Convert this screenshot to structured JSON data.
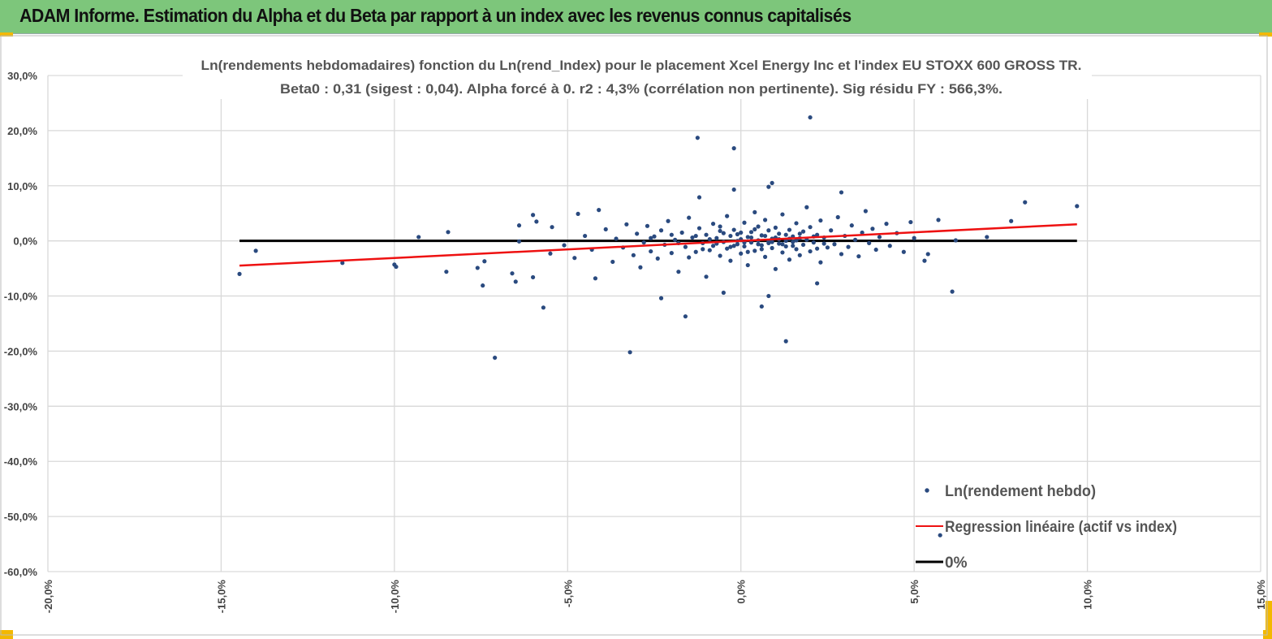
{
  "header": {
    "title": "ADAM Informe. Estimation du Alpha et du Beta par rapport à un index avec les revenus connus capitalisés"
  },
  "chart_data": {
    "type": "scatter",
    "title": "Ln(rendements hebdomadaires) fonction du Ln(rend_Index) pour le placement Xcel Energy Inc et l'index EU STOXX 600 GROSS TR.",
    "subtitle": "Beta0 : 0,31 (sigest : 0,04).  Alpha forcé à 0. r2 : 4,3% (corrélation non pertinente). Sig résidu FY : 566,3%.",
    "xlim": [
      -20,
      15
    ],
    "ylim": [
      -60,
      30
    ],
    "x_ticks": [
      -20,
      -15,
      -10,
      -5,
      0,
      5,
      10,
      15
    ],
    "x_tick_labels": [
      "-20,0%",
      "-15,0%",
      "-10,0%",
      "-5,0%",
      "0,0%",
      "5,0%",
      "10,0%",
      "15,0%"
    ],
    "y_ticks": [
      30,
      20,
      10,
      0,
      -10,
      -20,
      -30,
      -40,
      -50,
      -60
    ],
    "y_tick_labels": [
      "30,0%",
      "20,0%",
      "10,0%",
      "0,0%",
      "-10,0%",
      "-20,0%",
      "-30,0%",
      "-40,0%",
      "-50,0%",
      "-60,0%"
    ],
    "grid": true,
    "legend_position": "bottom-right",
    "legend": [
      "Ln(rendement hebdo)",
      "Regression linéaire (actif vs index)",
      "0%"
    ],
    "colors": {
      "points": "#2a4a7f",
      "regression": "#ee1111",
      "zero": "#000000",
      "header": "#7dc67b"
    },
    "regression": {
      "beta": 0.31,
      "alpha": 0,
      "x_range": [
        -14.47,
        9.7
      ]
    },
    "zero_line": {
      "y": 0,
      "x_range": [
        -14.47,
        9.7
      ]
    },
    "points": [
      [
        -14.47,
        -6.0
      ],
      [
        -14.0,
        -1.8
      ],
      [
        -11.5,
        -4.0
      ],
      [
        -10.0,
        -4.3
      ],
      [
        -9.95,
        -4.7
      ],
      [
        -9.3,
        0.7
      ],
      [
        -8.45,
        1.6
      ],
      [
        -8.5,
        -5.6
      ],
      [
        -7.6,
        -4.9
      ],
      [
        -7.4,
        -3.7
      ],
      [
        -7.45,
        -8.1
      ],
      [
        -7.1,
        -21.2
      ],
      [
        -6.6,
        -5.9
      ],
      [
        -6.5,
        -7.4
      ],
      [
        -6.4,
        -0.1
      ],
      [
        -6.4,
        2.8
      ],
      [
        -6.0,
        4.7
      ],
      [
        -5.9,
        3.5
      ],
      [
        -5.7,
        -12.1
      ],
      [
        -6.0,
        -6.6
      ],
      [
        -5.45,
        2.5
      ],
      [
        -4.7,
        4.9
      ],
      [
        -4.1,
        5.6
      ],
      [
        -4.2,
        -6.8
      ],
      [
        -3.2,
        -20.2
      ],
      [
        -1.25,
        18.7
      ],
      [
        -1.2,
        7.9
      ],
      [
        -1.6,
        -13.7
      ],
      [
        -2.3,
        -10.4
      ],
      [
        -0.2,
        9.3
      ],
      [
        -0.2,
        16.8
      ],
      [
        0.9,
        10.5
      ],
      [
        0.8,
        9.8
      ],
      [
        2.0,
        22.4
      ],
      [
        1.3,
        -18.2
      ],
      [
        0.6,
        -11.9
      ],
      [
        0.8,
        -10.0
      ],
      [
        2.2,
        -7.7
      ],
      [
        2.9,
        8.8
      ],
      [
        6.1,
        -9.2
      ],
      [
        5.7,
        3.8
      ],
      [
        6.2,
        0.1
      ],
      [
        7.1,
        0.7
      ],
      [
        7.8,
        3.6
      ],
      [
        8.2,
        7.0
      ],
      [
        9.7,
        6.3
      ],
      [
        5.75,
        -53.4
      ],
      [
        5.3,
        -3.6
      ],
      [
        5.4,
        -2.4
      ],
      [
        -0.5,
        -9.4
      ],
      [
        -5.5,
        -2.3
      ],
      [
        -5.1,
        -0.8
      ],
      [
        -4.8,
        -3.1
      ],
      [
        -4.5,
        0.9
      ],
      [
        -4.3,
        -1.6
      ],
      [
        -3.9,
        2.1
      ],
      [
        -3.7,
        -3.8
      ],
      [
        -3.6,
        0.4
      ],
      [
        -3.4,
        -1.2
      ],
      [
        -3.3,
        3.0
      ],
      [
        -3.1,
        -2.6
      ],
      [
        -3.0,
        1.3
      ],
      [
        -2.9,
        -4.8
      ],
      [
        -2.8,
        -0.3
      ],
      [
        -2.7,
        2.7
      ],
      [
        -2.6,
        -1.9
      ],
      [
        -2.5,
        0.8
      ],
      [
        -2.4,
        -3.2
      ],
      [
        -2.3,
        1.9
      ],
      [
        -2.2,
        -0.7
      ],
      [
        -2.1,
        3.6
      ],
      [
        -2.0,
        -2.2
      ],
      [
        -1.9,
        0.2
      ],
      [
        -1.8,
        -5.6
      ],
      [
        -1.7,
        1.5
      ],
      [
        -1.6,
        -1.1
      ],
      [
        -1.5,
        4.2
      ],
      [
        -1.5,
        -3.0
      ],
      [
        -1.4,
        0.6
      ],
      [
        -1.3,
        -2.0
      ],
      [
        -1.2,
        2.3
      ],
      [
        -1.1,
        -0.4
      ],
      [
        -1.0,
        -6.5
      ],
      [
        -1.0,
        1.1
      ],
      [
        -0.9,
        -1.7
      ],
      [
        -0.8,
        3.1
      ],
      [
        -0.8,
        -0.9
      ],
      [
        -0.7,
        0.5
      ],
      [
        -0.6,
        -2.7
      ],
      [
        -0.6,
        1.8
      ],
      [
        -0.5,
        -0.2
      ],
      [
        -0.4,
        4.5
      ],
      [
        -0.4,
        -1.4
      ],
      [
        -0.3,
        0.9
      ],
      [
        -0.3,
        -3.6
      ],
      [
        -0.2,
        2.0
      ],
      [
        -0.1,
        -0.6
      ],
      [
        -0.1,
        1.2
      ],
      [
        0.0,
        -2.3
      ],
      [
        0.0,
        0.3
      ],
      [
        0.1,
        3.3
      ],
      [
        0.1,
        -1.0
      ],
      [
        0.2,
        0.7
      ],
      [
        0.2,
        -4.4
      ],
      [
        0.3,
        1.6
      ],
      [
        0.3,
        -0.3
      ],
      [
        0.4,
        5.2
      ],
      [
        0.4,
        -1.8
      ],
      [
        0.5,
        0.1
      ],
      [
        0.5,
        2.6
      ],
      [
        0.6,
        -0.8
      ],
      [
        0.6,
        1.0
      ],
      [
        0.7,
        -2.9
      ],
      [
        0.7,
        3.8
      ],
      [
        0.8,
        -0.1
      ],
      [
        0.8,
        1.9
      ],
      [
        0.9,
        -1.3
      ],
      [
        0.9,
        0.4
      ],
      [
        1.0,
        -5.1
      ],
      [
        1.0,
        2.4
      ],
      [
        1.1,
        -0.5
      ],
      [
        1.1,
        1.3
      ],
      [
        1.2,
        -2.1
      ],
      [
        1.2,
        4.8
      ],
      [
        1.3,
        0.0
      ],
      [
        1.3,
        -1.0
      ],
      [
        1.4,
        2.0
      ],
      [
        1.4,
        -3.4
      ],
      [
        1.5,
        0.8
      ],
      [
        1.5,
        -0.2
      ],
      [
        1.6,
        3.2
      ],
      [
        1.6,
        -1.5
      ],
      [
        1.7,
        0.5
      ],
      [
        1.7,
        -2.6
      ],
      [
        1.8,
        1.7
      ],
      [
        1.8,
        -0.7
      ],
      [
        1.9,
        6.1
      ],
      [
        1.9,
        0.2
      ],
      [
        2.0,
        -1.9
      ],
      [
        2.0,
        2.5
      ],
      [
        2.1,
        -0.3
      ],
      [
        2.2,
        1.1
      ],
      [
        2.3,
        -3.9
      ],
      [
        2.3,
        3.7
      ],
      [
        2.4,
        0.6
      ],
      [
        2.5,
        -1.2
      ],
      [
        2.6,
        1.9
      ],
      [
        2.7,
        -0.6
      ],
      [
        2.8,
        4.3
      ],
      [
        2.9,
        -2.4
      ],
      [
        3.0,
        0.9
      ],
      [
        3.1,
        -1.1
      ],
      [
        3.2,
        2.8
      ],
      [
        3.3,
        0.2
      ],
      [
        3.4,
        -2.8
      ],
      [
        3.5,
        1.5
      ],
      [
        3.6,
        5.4
      ],
      [
        3.7,
        -0.4
      ],
      [
        3.8,
        2.2
      ],
      [
        3.9,
        -1.6
      ],
      [
        4.0,
        0.7
      ],
      [
        4.2,
        3.1
      ],
      [
        4.3,
        -0.9
      ],
      [
        4.5,
        1.4
      ],
      [
        4.7,
        -2.0
      ],
      [
        4.9,
        3.4
      ],
      [
        5.0,
        0.5
      ],
      [
        -0.9,
        0.3
      ],
      [
        -0.7,
        -0.5
      ],
      [
        -0.5,
        1.4
      ],
      [
        -0.3,
        -1.1
      ],
      [
        -0.1,
        0.0
      ],
      [
        0.1,
        -0.3
      ],
      [
        0.3,
        0.6
      ],
      [
        0.5,
        -0.6
      ],
      [
        0.7,
        0.9
      ],
      [
        0.9,
        -0.2
      ],
      [
        1.1,
        0.3
      ],
      [
        1.3,
        1.1
      ],
      [
        1.5,
        -0.9
      ],
      [
        1.7,
        1.3
      ],
      [
        -1.3,
        0.9
      ],
      [
        -1.1,
        -1.5
      ],
      [
        -0.6,
        2.6
      ],
      [
        0.2,
        -2.0
      ],
      [
        0.4,
        2.1
      ],
      [
        0.6,
        -1.5
      ],
      [
        1.0,
        0.6
      ],
      [
        1.2,
        -0.6
      ],
      [
        1.4,
        0.4
      ],
      [
        2.1,
        0.8
      ],
      [
        2.4,
        -0.5
      ],
      [
        -2.6,
        0.5
      ],
      [
        -2.0,
        1.1
      ],
      [
        -1.8,
        -0.4
      ],
      [
        -0.2,
        -0.9
      ],
      [
        0.0,
        1.5
      ],
      [
        0.8,
        -0.4
      ],
      [
        1.6,
        0.1
      ],
      [
        2.2,
        -1.4
      ]
    ]
  }
}
